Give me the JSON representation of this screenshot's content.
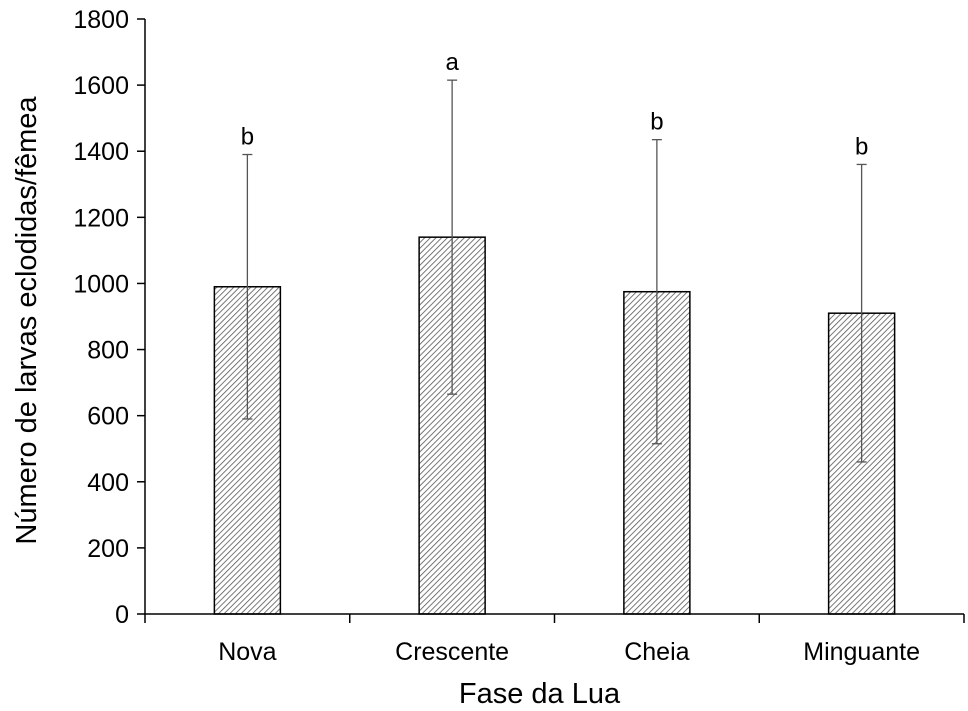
{
  "chart_data": {
    "type": "bar",
    "title": "",
    "xlabel": "Fase da Lua",
    "ylabel": "Número de larvas eclodidas/fêmea",
    "ylim": [
      0,
      1800
    ],
    "yticks": [
      0,
      200,
      400,
      600,
      800,
      1000,
      1200,
      1400,
      1600,
      1800
    ],
    "ytick_labels": [
      "0",
      "200",
      "400",
      "600",
      "800",
      "1000",
      "1200",
      "1400",
      "1600",
      "1800"
    ],
    "categories": [
      "Nova",
      "Crescente",
      "Cheia",
      "Minguante"
    ],
    "values": [
      990,
      1140,
      975,
      910
    ],
    "error": [
      400,
      475,
      460,
      450
    ],
    "significance_letters": [
      "b",
      "a",
      "b",
      "b"
    ],
    "grid": false,
    "bar_fill": "diagonal-hatch",
    "colors": {
      "bar_stroke": "#000000",
      "hatch": "#555555",
      "axis": "#000000"
    }
  }
}
